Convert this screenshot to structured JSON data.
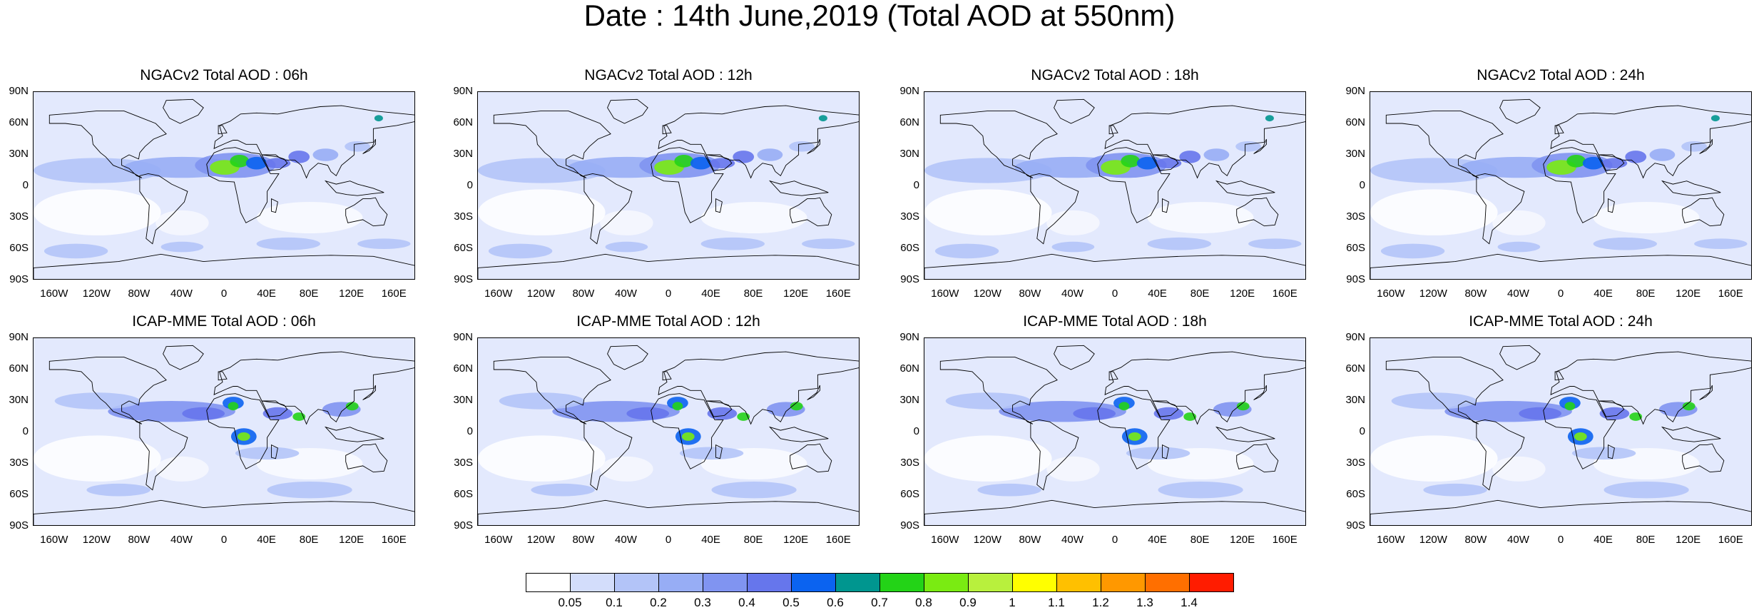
{
  "title": "Date : 14th June,2019 (Total AOD at 550nm)",
  "panels": [
    {
      "title": "NGACv2 Total AOD : 06h"
    },
    {
      "title": "NGACv2 Total AOD : 12h"
    },
    {
      "title": "NGACv2 Total AOD : 18h"
    },
    {
      "title": "NGACv2 Total AOD : 24h"
    },
    {
      "title": "ICAP-MME Total AOD : 06h"
    },
    {
      "title": "ICAP-MME Total AOD : 12h"
    },
    {
      "title": "ICAP-MME Total AOD : 18h"
    },
    {
      "title": "ICAP-MME Total AOD : 24h"
    }
  ],
  "lat_labels": [
    "90N",
    "60N",
    "30N",
    "0",
    "30S",
    "60S",
    "90S"
  ],
  "lon_labels": [
    "160W",
    "120W",
    "80W",
    "40W",
    "0",
    "40E",
    "80E",
    "120E",
    "160E"
  ],
  "colorbar": {
    "labels": [
      "0.05",
      "0.1",
      "0.2",
      "0.3",
      "0.4",
      "0.5",
      "0.6",
      "0.7",
      "0.8",
      "0.9",
      "1",
      "1.1",
      "1.2",
      "1.3",
      "1.4"
    ],
    "colors": [
      "#ffffff",
      "#d3ddfb",
      "#b3c4f8",
      "#97adf5",
      "#8094f1",
      "#6676ec",
      "#0b63f0",
      "#00968f",
      "#23d317",
      "#7aeb12",
      "#b8f03d",
      "#ffff00",
      "#ffc000",
      "#ff9800",
      "#ff6f00",
      "#ff1c00"
    ]
  }
}
